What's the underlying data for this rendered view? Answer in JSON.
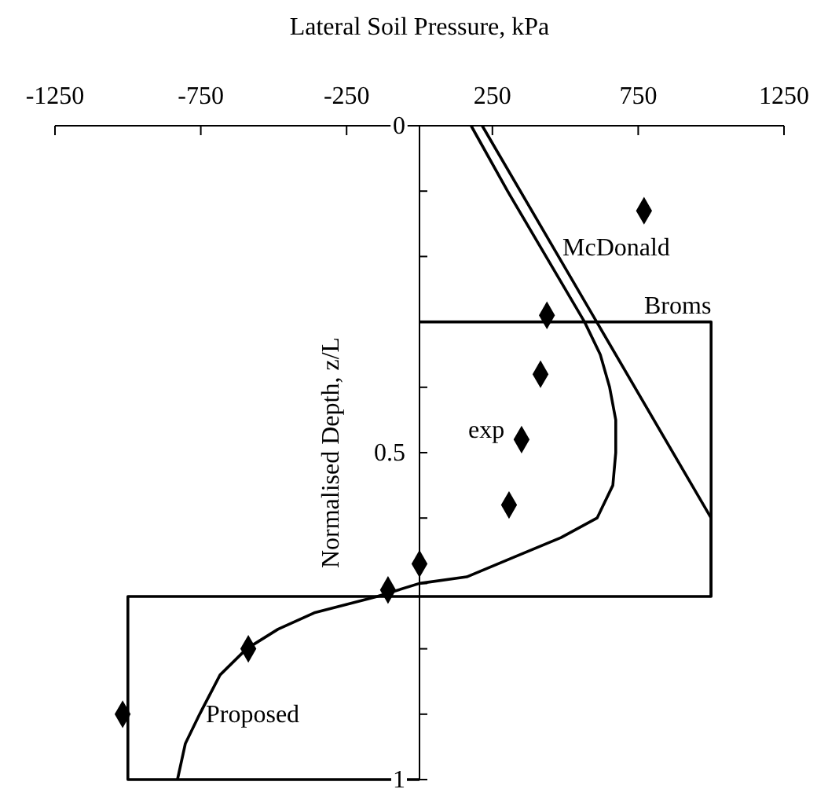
{
  "chart_data": {
    "type": "line",
    "xlabel": "Lateral Soil Pressure, kPa",
    "ylabel": "Normalised Depth, z/L",
    "xlim": [
      -1250,
      1250
    ],
    "xticks": [
      -1250,
      -750,
      -250,
      250,
      750,
      1250
    ],
    "ylim": [
      1,
      0
    ],
    "yticks": [
      0,
      {
        "value": 0.1,
        "label": null
      },
      {
        "value": 0.2,
        "label": null
      },
      {
        "value": 0.3,
        "label": null
      },
      {
        "value": 0.4,
        "label": null
      },
      0.5,
      {
        "value": 0.6,
        "label": null
      },
      {
        "value": 0.7,
        "label": null
      },
      {
        "value": 0.8,
        "label": null
      },
      {
        "value": 0.9,
        "label": null
      },
      1
    ],
    "series": [
      {
        "name": "Broms",
        "color": "#000000",
        "x": [
          0,
          1000,
          1000
        ],
        "values": [
          0.3,
          0.3,
          0.72
        ]
      },
      {
        "name": "McDonald",
        "color": "#000000",
        "x": [
          215,
          1000,
          1000,
          -1000,
          -1000,
          0
        ],
        "values": [
          0,
          0.6,
          0.72,
          0.72,
          1,
          1
        ]
      },
      {
        "name": "Proposed",
        "color": "#000000",
        "x": [
          177,
          302,
          566,
          620,
          652,
          673,
          673,
          663,
          609,
          485,
          323,
          162,
          0,
          -145,
          -361,
          -485,
          -593,
          -684,
          -754,
          -803,
          -830
        ],
        "values": [
          0,
          0.1,
          0.3,
          0.35,
          0.4,
          0.45,
          0.5,
          0.55,
          0.6,
          0.63,
          0.66,
          0.69,
          0.7,
          0.72,
          0.745,
          0.77,
          0.8,
          0.84,
          0.9,
          0.945,
          1
        ]
      },
      {
        "name": "exp",
        "type": "scatter",
        "color": "#000000",
        "marker": "diamond",
        "x": [
          770,
          437,
          415,
          350,
          307,
          0,
          -108,
          -587,
          -1018
        ],
        "values": [
          0.13,
          0.29,
          0.38,
          0.48,
          0.58,
          0.67,
          0.71,
          0.8,
          0.9
        ]
      }
    ]
  }
}
